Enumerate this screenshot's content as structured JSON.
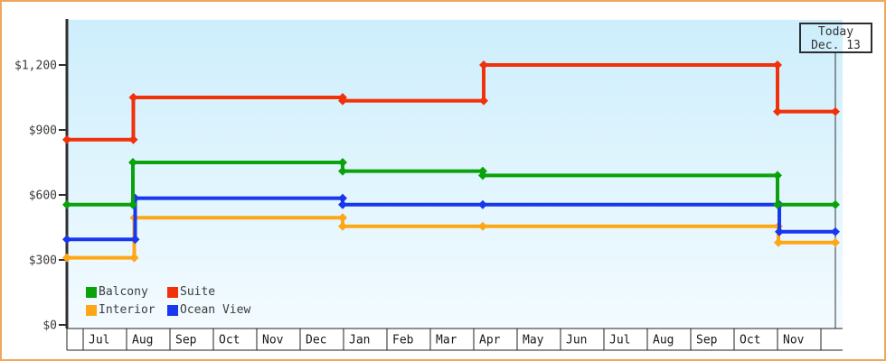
{
  "colors": {
    "frame_border": "#efa75c",
    "plot_bg_top": "#cdeefc",
    "plot_bg_bottom": "#f3fbff",
    "axis": "#2f2f2f",
    "grid_row": "#222222",
    "tick_label": "#3a3a3a",
    "month_label": "#1a1a1a",
    "today_line": "#333333"
  },
  "chart_data": {
    "type": "line",
    "style": "step-after price history chart, no title",
    "x_unit": "months since start of first 'Jul' cell; left edge = -0.375, today marker = 17.333",
    "x_axis": {
      "month_labels": [
        "Jul",
        "Aug",
        "Sep",
        "Oct",
        "Nov",
        "Dec",
        "Jan",
        "Feb",
        "Mar",
        "Apr",
        "May",
        "Jun",
        "Jul",
        "Aug",
        "Sep",
        "Oct",
        "Nov"
      ]
    },
    "y_axis": {
      "tick_labels": [
        "$1,200",
        "$900",
        "$600",
        "$300",
        "$0"
      ],
      "tick_values": [
        1200,
        900,
        600,
        300,
        0
      ],
      "range": [
        0,
        1408
      ],
      "unit": "USD"
    },
    "today": {
      "line1": "Today",
      "line2": "Dec. 13",
      "month_position": 17.333
    },
    "legend_position": "bottom-left inside plot, 2 columns",
    "series": [
      {
        "name": "Balcony",
        "color": "#0aa20a",
        "z": 3,
        "points": [
          [
            -0.375,
            555
          ],
          [
            1.146,
            750
          ],
          [
            5.979,
            710
          ],
          [
            9.208,
            690
          ],
          [
            16.0,
            555
          ],
          [
            17.333,
            555
          ]
        ]
      },
      {
        "name": "Suite",
        "color": "#f13109",
        "z": 4,
        "points": [
          [
            -0.375,
            855
          ],
          [
            1.156,
            1050
          ],
          [
            5.979,
            1035
          ],
          [
            9.229,
            1200
          ],
          [
            16.0,
            985
          ],
          [
            17.333,
            985
          ]
        ]
      },
      {
        "name": "Interior",
        "color": "#fda716",
        "z": 1,
        "points": [
          [
            -0.375,
            310
          ],
          [
            1.177,
            495
          ],
          [
            5.979,
            455
          ],
          [
            9.208,
            455
          ],
          [
            16.021,
            380
          ],
          [
            17.333,
            380
          ]
        ]
      },
      {
        "name": "Ocean View",
        "color": "#1837ee",
        "z": 2,
        "points": [
          [
            -0.375,
            395
          ],
          [
            1.198,
            585
          ],
          [
            5.979,
            555
          ],
          [
            9.208,
            555
          ],
          [
            16.042,
            430
          ],
          [
            17.333,
            430
          ]
        ]
      }
    ]
  }
}
